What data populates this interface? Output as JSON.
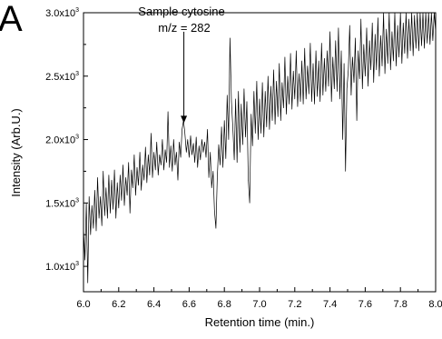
{
  "panel_label": "A",
  "chart_data": {
    "type": "line",
    "xlabel": "Retention time (min.)",
    "ylabel": "Intensity (Arb.U.)",
    "xlim": [
      6.0,
      8.0
    ],
    "ylim": [
      800,
      3000
    ],
    "x_ticks": [
      6.0,
      6.2,
      6.4,
      6.6,
      6.8,
      7.0,
      7.2,
      7.4,
      7.6,
      7.8,
      8.0
    ],
    "x_tick_labels": [
      "6.0",
      "6.2",
      "6.4",
      "6.6",
      "6.8",
      "7.0",
      "7.2",
      "7.4",
      "7.6",
      "7.8",
      "8.0"
    ],
    "y_ticks": [
      1000,
      1500,
      2000,
      2500,
      3000
    ],
    "y_tick_labels": [
      {
        "base": "1.0x10",
        "exp": "3"
      },
      {
        "base": "1.5x10",
        "exp": "3"
      },
      {
        "base": "2.0x10",
        "exp": "3"
      },
      {
        "base": "2.5x10",
        "exp": "3"
      },
      {
        "base": "3.0x10",
        "exp": "3"
      }
    ],
    "grid": false,
    "annotation": {
      "line1": "Sample cytosine",
      "line2": "m/z = 282",
      "x": 6.57,
      "y_tip": 2130,
      "y_tail": 2850
    },
    "series": [
      {
        "color": "#000000",
        "points": [
          [
            6.0,
            1300
          ],
          [
            6.008,
            1050
          ],
          [
            6.016,
            1500
          ],
          [
            6.024,
            870
          ],
          [
            6.032,
            1550
          ],
          [
            6.04,
            1250
          ],
          [
            6.048,
            1480
          ],
          [
            6.056,
            1300
          ],
          [
            6.064,
            1600
          ],
          [
            6.072,
            1280
          ],
          [
            6.08,
            1700
          ],
          [
            6.088,
            1380
          ],
          [
            6.096,
            1550
          ],
          [
            6.104,
            1320
          ],
          [
            6.112,
            1750
          ],
          [
            6.12,
            1400
          ],
          [
            6.128,
            1620
          ],
          [
            6.136,
            1380
          ],
          [
            6.144,
            1720
          ],
          [
            6.152,
            1420
          ],
          [
            6.16,
            1680
          ],
          [
            6.168,
            1450
          ],
          [
            6.176,
            1760
          ],
          [
            6.184,
            1380
          ],
          [
            6.192,
            1660
          ],
          [
            6.2,
            1460
          ],
          [
            6.208,
            1720
          ],
          [
            6.216,
            1520
          ],
          [
            6.224,
            1800
          ],
          [
            6.232,
            1480
          ],
          [
            6.24,
            1700
          ],
          [
            6.248,
            1560
          ],
          [
            6.256,
            1820
          ],
          [
            6.264,
            1420
          ],
          [
            6.272,
            1760
          ],
          [
            6.28,
            1620
          ],
          [
            6.288,
            1880
          ],
          [
            6.296,
            1560
          ],
          [
            6.304,
            1780
          ],
          [
            6.312,
            1640
          ],
          [
            6.32,
            1900
          ],
          [
            6.328,
            1600
          ],
          [
            6.336,
            1800
          ],
          [
            6.344,
            1680
          ],
          [
            6.352,
            1940
          ],
          [
            6.36,
            1660
          ],
          [
            6.368,
            1880
          ],
          [
            6.376,
            1720
          ],
          [
            6.384,
            2050
          ],
          [
            6.392,
            1700
          ],
          [
            6.4,
            1900
          ],
          [
            6.408,
            1760
          ],
          [
            6.416,
            1980
          ],
          [
            6.424,
            1720
          ],
          [
            6.432,
            1880
          ],
          [
            6.44,
            1800
          ],
          [
            6.448,
            2000
          ],
          [
            6.456,
            1760
          ],
          [
            6.464,
            1920
          ],
          [
            6.472,
            1820
          ],
          [
            6.48,
            2220
          ],
          [
            6.488,
            1780
          ],
          [
            6.496,
            1950
          ],
          [
            6.504,
            1750
          ],
          [
            6.512,
            2000
          ],
          [
            6.52,
            1800
          ],
          [
            6.528,
            1900
          ],
          [
            6.536,
            1680
          ],
          [
            6.544,
            1980
          ],
          [
            6.552,
            1860
          ],
          [
            6.56,
            2080
          ],
          [
            6.568,
            2150
          ],
          [
            6.576,
            2050
          ],
          [
            6.584,
            1900
          ],
          [
            6.592,
            2000
          ],
          [
            6.6,
            1860
          ],
          [
            6.608,
            2030
          ],
          [
            6.616,
            1880
          ],
          [
            6.624,
            1970
          ],
          [
            6.632,
            1820
          ],
          [
            6.64,
            2020
          ],
          [
            6.648,
            1780
          ],
          [
            6.656,
            1950
          ],
          [
            6.664,
            1840
          ],
          [
            6.672,
            2000
          ],
          [
            6.68,
            1900
          ],
          [
            6.688,
            1980
          ],
          [
            6.696,
            1860
          ],
          [
            6.704,
            2080
          ],
          [
            6.712,
            1700
          ],
          [
            6.72,
            1900
          ],
          [
            6.728,
            1620
          ],
          [
            6.736,
            1750
          ],
          [
            6.744,
            1440
          ],
          [
            6.752,
            1300
          ],
          [
            6.76,
            1700
          ],
          [
            6.768,
            1960
          ],
          [
            6.776,
            1800
          ],
          [
            6.784,
            2100
          ],
          [
            6.792,
            1780
          ],
          [
            6.8,
            2150
          ],
          [
            6.808,
            1850
          ],
          [
            6.816,
            2350
          ],
          [
            6.824,
            2000
          ],
          [
            6.832,
            2800
          ],
          [
            6.84,
            2300
          ],
          [
            6.848,
            2100
          ],
          [
            6.856,
            1840
          ],
          [
            6.864,
            2320
          ],
          [
            6.872,
            1820
          ],
          [
            6.88,
            2380
          ],
          [
            6.888,
            1900
          ],
          [
            6.896,
            2280
          ],
          [
            6.904,
            1960
          ],
          [
            6.912,
            2400
          ],
          [
            6.92,
            2020
          ],
          [
            6.928,
            2300
          ],
          [
            6.936,
            1680
          ],
          [
            6.944,
            1500
          ],
          [
            6.952,
            2200
          ],
          [
            6.96,
            1950
          ],
          [
            6.968,
            2380
          ],
          [
            6.976,
            2050
          ],
          [
            6.984,
            2460
          ],
          [
            6.992,
            2000
          ],
          [
            7.0,
            2320
          ],
          [
            7.008,
            2050
          ],
          [
            7.016,
            2450
          ],
          [
            7.024,
            2020
          ],
          [
            7.032,
            2380
          ],
          [
            7.04,
            2100
          ],
          [
            7.048,
            2500
          ],
          [
            7.056,
            2080
          ],
          [
            7.064,
            2420
          ],
          [
            7.072,
            2150
          ],
          [
            7.08,
            2550
          ],
          [
            7.088,
            2120
          ],
          [
            7.096,
            2460
          ],
          [
            7.104,
            2180
          ],
          [
            7.112,
            2600
          ],
          [
            7.12,
            2150
          ],
          [
            7.128,
            2450
          ],
          [
            7.136,
            2250
          ],
          [
            7.144,
            2650
          ],
          [
            7.152,
            2200
          ],
          [
            7.16,
            2500
          ],
          [
            7.168,
            2280
          ],
          [
            7.176,
            2680
          ],
          [
            7.184,
            2240
          ],
          [
            7.192,
            2540
          ],
          [
            7.2,
            2320
          ],
          [
            7.208,
            2700
          ],
          [
            7.216,
            2260
          ],
          [
            7.224,
            2520
          ],
          [
            7.232,
            2300
          ],
          [
            7.24,
            2620
          ],
          [
            7.248,
            2280
          ],
          [
            7.256,
            2720
          ],
          [
            7.264,
            2320
          ],
          [
            7.272,
            2580
          ],
          [
            7.28,
            2360
          ],
          [
            7.288,
            2760
          ],
          [
            7.296,
            2300
          ],
          [
            7.304,
            2600
          ],
          [
            7.312,
            2280
          ],
          [
            7.32,
            2700
          ],
          [
            7.328,
            2340
          ],
          [
            7.336,
            2620
          ],
          [
            7.344,
            2300
          ],
          [
            7.352,
            2760
          ],
          [
            7.36,
            2350
          ],
          [
            7.368,
            2640
          ],
          [
            7.376,
            2380
          ],
          [
            7.384,
            2700
          ],
          [
            7.392,
            2420
          ],
          [
            7.4,
            2850
          ],
          [
            7.408,
            2300
          ],
          [
            7.416,
            2650
          ],
          [
            7.424,
            2400
          ],
          [
            7.432,
            2780
          ],
          [
            7.44,
            2380
          ],
          [
            7.448,
            2880
          ],
          [
            7.456,
            2320
          ],
          [
            7.464,
            2700
          ],
          [
            7.472,
            2000
          ],
          [
            7.48,
            2600
          ],
          [
            7.488,
            1750
          ],
          [
            7.496,
            2400
          ],
          [
            7.504,
            2550
          ],
          [
            7.512,
            2900
          ],
          [
            7.52,
            2350
          ],
          [
            7.528,
            2650
          ],
          [
            7.536,
            2450
          ],
          [
            7.544,
            2800
          ],
          [
            7.552,
            2150
          ],
          [
            7.56,
            2700
          ],
          [
            7.568,
            2480
          ],
          [
            7.576,
            2950
          ],
          [
            7.584,
            2400
          ],
          [
            7.592,
            2750
          ],
          [
            7.6,
            2500
          ],
          [
            7.608,
            2880
          ],
          [
            7.616,
            2420
          ],
          [
            7.624,
            2780
          ],
          [
            7.632,
            2550
          ],
          [
            7.64,
            2920
          ],
          [
            7.648,
            2450
          ],
          [
            7.656,
            2830
          ],
          [
            7.664,
            2550
          ],
          [
            7.672,
            2960
          ],
          [
            7.68,
            2500
          ],
          [
            7.688,
            2820
          ],
          [
            7.696,
            2580
          ],
          [
            7.704,
            3000
          ],
          [
            7.712,
            2520
          ],
          [
            7.72,
            2870
          ],
          [
            7.728,
            2600
          ],
          [
            7.736,
            3000
          ],
          [
            7.744,
            2550
          ],
          [
            7.752,
            2850
          ],
          [
            7.76,
            2620
          ],
          [
            7.768,
            3000
          ],
          [
            7.776,
            2580
          ],
          [
            7.784,
            2900
          ],
          [
            7.792,
            2650
          ],
          [
            7.8,
            3000
          ],
          [
            7.808,
            2600
          ],
          [
            7.816,
            2920
          ],
          [
            7.824,
            2680
          ],
          [
            7.832,
            3000
          ],
          [
            7.84,
            2640
          ],
          [
            7.848,
            2950
          ],
          [
            7.856,
            2700
          ],
          [
            7.864,
            3000
          ],
          [
            7.872,
            2660
          ],
          [
            7.88,
            2980
          ],
          [
            7.888,
            2720
          ],
          [
            7.896,
            3000
          ],
          [
            7.904,
            2700
          ],
          [
            7.912,
            3000
          ],
          [
            7.92,
            2740
          ],
          [
            7.928,
            3000
          ],
          [
            7.936,
            2720
          ],
          [
            7.944,
            3000
          ],
          [
            7.952,
            2760
          ],
          [
            7.96,
            3000
          ],
          [
            7.968,
            2750
          ],
          [
            7.976,
            3000
          ],
          [
            7.984,
            2780
          ],
          [
            7.992,
            3000
          ],
          [
            8.0,
            2850
          ]
        ]
      }
    ]
  }
}
